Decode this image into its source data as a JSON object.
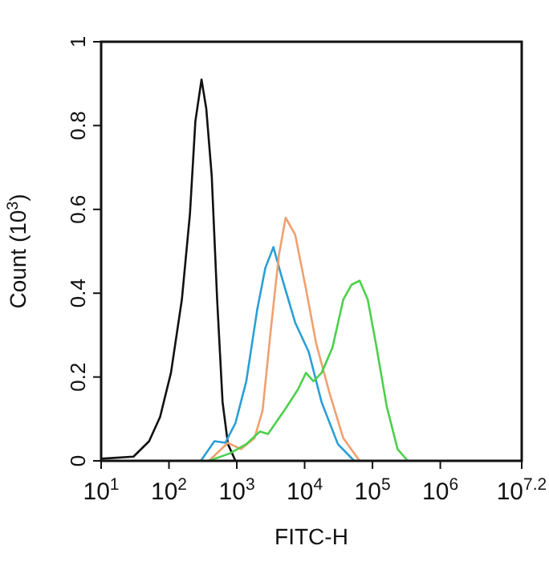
{
  "chart_data": {
    "type": "line",
    "xlabel": "FITC-H",
    "ylabel": "Count (10$^{3}$)",
    "log": "x",
    "xlim": [
      10,
      15848932
    ],
    "ylim": [
      0,
      1
    ],
    "xticks": [
      {
        "value": 10,
        "label": "10$^{1}$"
      },
      {
        "value": 100,
        "label": "10$^{2}$"
      },
      {
        "value": 1000,
        "label": "10$^{3}$"
      },
      {
        "value": 10000,
        "label": "10$^{4}$"
      },
      {
        "value": 100000,
        "label": "10$^{5}$"
      },
      {
        "value": 1000000,
        "label": "10$^{6}$"
      },
      {
        "value": 15848932,
        "label": "10$^{7.2}$"
      }
    ],
    "yticks": [
      0,
      0.2,
      0.4,
      0.6,
      0.8,
      1
    ],
    "grid": false,
    "marker": "none",
    "line_style": "solid",
    "series": [
      {
        "color": "#111111",
        "x": [
          10,
          30,
          51,
          74,
          107,
          155,
          204,
          245,
          302,
          355,
          427,
          513,
          617,
          741,
          955
        ],
        "values": [
          0.005,
          0.01,
          0.047,
          0.105,
          0.21,
          0.385,
          0.59,
          0.81,
          0.91,
          0.84,
          0.68,
          0.385,
          0.14,
          0.04,
          0
        ]
      },
      {
        "color": "#2a9fd6",
        "x": [
          295,
          468,
          676,
          955,
          1380,
          1995,
          2630,
          3467,
          4571,
          7244,
          11482,
          17783,
          30903,
          53703
        ],
        "values": [
          0,
          0.047,
          0.043,
          0.09,
          0.19,
          0.36,
          0.46,
          0.51,
          0.44,
          0.33,
          0.26,
          0.14,
          0.04,
          0
        ]
      },
      {
        "color": "#f0a070",
        "x": [
          389,
          741,
          1148,
          1820,
          2399,
          3162,
          4169,
          5248,
          7244,
          10471,
          14791,
          23442,
          37154,
          64565
        ],
        "values": [
          0,
          0.043,
          0.028,
          0.054,
          0.12,
          0.31,
          0.49,
          0.58,
          0.54,
          0.41,
          0.28,
          0.16,
          0.054,
          0
        ]
      },
      {
        "color": "#4cd04c",
        "x": [
          389,
          794,
          1380,
          2188,
          2884,
          5012,
          7943,
          10471,
          13490,
          17783,
          25704,
          37154,
          48978,
          64565,
          85114,
          112202,
          162181,
          234423,
          331131
        ],
        "values": [
          0,
          0.018,
          0.04,
          0.07,
          0.064,
          0.12,
          0.17,
          0.21,
          0.19,
          0.21,
          0.27,
          0.385,
          0.42,
          0.43,
          0.385,
          0.28,
          0.13,
          0.028,
          0
        ]
      }
    ]
  }
}
